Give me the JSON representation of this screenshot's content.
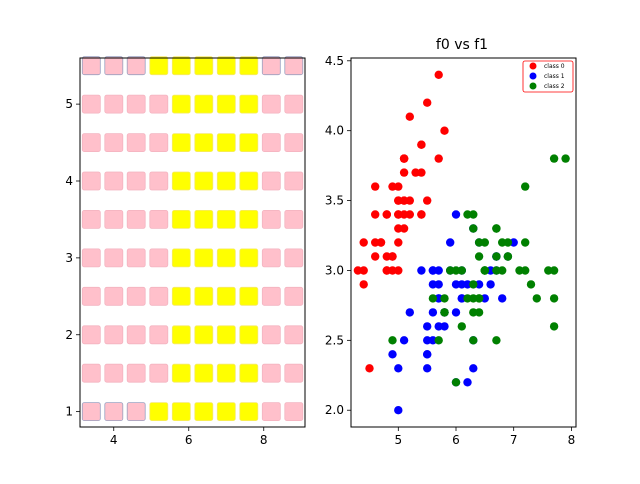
{
  "chart_data": [
    {
      "type": "heatmap",
      "title": "",
      "xlabel": "",
      "ylabel": "",
      "xlim": [
        3.1,
        9.1
      ],
      "ylim": [
        0.8,
        5.6
      ],
      "x_ticks": [
        "4",
        "6",
        "8"
      ],
      "x_tick_values": [
        4,
        6,
        8
      ],
      "y_ticks": [
        "1",
        "2",
        "3",
        "4",
        "5"
      ],
      "y_tick_values": [
        1,
        2,
        3,
        4,
        5
      ],
      "grid": false,
      "x": [
        3.4,
        4.0,
        4.6,
        5.2,
        5.8,
        6.4,
        7.0,
        7.6,
        8.2,
        8.8
      ],
      "y": [
        1.0,
        1.5,
        2.0,
        2.5,
        3.0,
        3.5,
        4.0,
        4.5,
        5.0,
        5.5
      ],
      "cell_classes": [
        [
          0,
          0,
          0,
          1,
          1,
          1,
          1,
          1,
          0,
          0
        ],
        [
          0,
          0,
          0,
          0,
          1,
          1,
          1,
          1,
          0,
          0
        ],
        [
          0,
          0,
          0,
          0,
          1,
          1,
          1,
          1,
          0,
          0
        ],
        [
          0,
          0,
          0,
          0,
          1,
          1,
          1,
          1,
          0,
          0
        ],
        [
          0,
          0,
          0,
          0,
          1,
          1,
          1,
          1,
          0,
          0
        ],
        [
          0,
          0,
          0,
          0,
          1,
          1,
          1,
          1,
          0,
          0
        ],
        [
          0,
          0,
          0,
          0,
          1,
          1,
          1,
          1,
          0,
          0
        ],
        [
          0,
          0,
          0,
          0,
          1,
          1,
          1,
          1,
          0,
          0
        ],
        [
          0,
          0,
          0,
          0,
          1,
          1,
          1,
          1,
          0,
          0
        ],
        [
          0,
          0,
          0,
          1,
          1,
          1,
          1,
          1,
          0,
          0
        ]
      ],
      "class_colors": [
        "#ffc0cb",
        "#ffff00"
      ],
      "highlight_cells": [
        [
          0,
          0
        ],
        [
          0,
          1
        ],
        [
          0,
          2
        ],
        [
          9,
          0
        ],
        [
          9,
          1
        ],
        [
          9,
          2
        ],
        [
          9,
          8
        ],
        [
          9,
          9
        ]
      ],
      "highlight_color": "#9aa0c0"
    },
    {
      "type": "scatter",
      "title": "f0 vs f1",
      "xlabel": "",
      "ylabel": "",
      "xlim": [
        4.18,
        8.08
      ],
      "ylim": [
        1.88,
        4.52
      ],
      "x_ticks": [
        "5",
        "6",
        "7",
        "8"
      ],
      "x_tick_values": [
        5,
        6,
        7,
        8
      ],
      "y_ticks": [
        "2.0",
        "2.5",
        "3.0",
        "3.5",
        "4.0",
        "4.5"
      ],
      "y_tick_values": [
        2.0,
        2.5,
        3.0,
        3.5,
        4.0,
        4.5
      ],
      "grid": false,
      "legend_position": "top-right",
      "series": [
        {
          "name": "class 0",
          "color": "#ff0000",
          "x": [
            5.1,
            4.9,
            4.7,
            4.6,
            5.0,
            5.4,
            4.6,
            5.0,
            4.4,
            4.9,
            5.4,
            4.8,
            4.8,
            4.3,
            5.8,
            5.7,
            5.4,
            5.1,
            5.7,
            5.1,
            5.4,
            5.1,
            4.6,
            5.1,
            4.8,
            5.0,
            5.0,
            5.2,
            5.2,
            4.7,
            4.8,
            5.4,
            5.2,
            5.5,
            4.9,
            5.0,
            5.5,
            4.9,
            4.4,
            5.1,
            5.0,
            4.5,
            4.4,
            5.0,
            5.1,
            4.8,
            5.1,
            4.6,
            5.3,
            5.0
          ],
          "y": [
            3.5,
            3.0,
            3.2,
            3.1,
            3.6,
            3.9,
            3.4,
            3.4,
            2.9,
            3.1,
            3.7,
            3.4,
            3.0,
            3.0,
            4.0,
            4.4,
            3.9,
            3.5,
            3.8,
            3.8,
            3.4,
            3.7,
            3.6,
            3.3,
            3.4,
            3.0,
            3.4,
            3.5,
            3.4,
            3.2,
            3.1,
            3.4,
            4.1,
            4.2,
            3.1,
            3.2,
            3.5,
            3.6,
            3.0,
            3.4,
            3.5,
            2.3,
            3.2,
            3.5,
            3.8,
            3.0,
            3.8,
            3.2,
            3.7,
            3.3
          ]
        },
        {
          "name": "class 1",
          "color": "#0000ff",
          "x": [
            7.0,
            6.4,
            6.9,
            5.5,
            6.5,
            5.7,
            6.3,
            4.9,
            6.6,
            5.2,
            5.0,
            5.9,
            6.0,
            6.1,
            5.6,
            6.7,
            5.6,
            5.8,
            6.2,
            5.6,
            5.9,
            6.1,
            6.3,
            6.1,
            6.4,
            6.6,
            6.8,
            6.7,
            6.0,
            5.7,
            5.5,
            5.5,
            5.8,
            6.0,
            5.4,
            6.0,
            6.7,
            6.3,
            5.6,
            5.5,
            5.5,
            6.1,
            5.8,
            5.0,
            5.6,
            5.7,
            5.7,
            6.2,
            5.1,
            5.7
          ],
          "y": [
            3.2,
            3.2,
            3.1,
            2.3,
            2.8,
            2.8,
            3.3,
            2.4,
            2.9,
            2.7,
            2.0,
            3.0,
            2.2,
            2.9,
            2.9,
            3.1,
            3.0,
            2.7,
            2.2,
            2.5,
            3.2,
            2.8,
            2.5,
            2.8,
            2.9,
            3.0,
            2.8,
            3.0,
            2.9,
            2.6,
            2.4,
            2.4,
            2.7,
            2.7,
            3.0,
            3.4,
            3.1,
            2.3,
            3.0,
            2.5,
            2.6,
            3.0,
            2.6,
            2.3,
            2.7,
            3.0,
            2.9,
            2.9,
            2.5,
            2.8
          ]
        },
        {
          "name": "class 2",
          "color": "#008000",
          "x": [
            6.3,
            5.8,
            7.1,
            6.3,
            6.5,
            7.6,
            4.9,
            7.3,
            6.7,
            7.2,
            6.5,
            6.4,
            6.8,
            5.7,
            5.8,
            6.4,
            6.5,
            7.7,
            7.7,
            6.0,
            6.9,
            5.6,
            7.7,
            6.3,
            6.7,
            7.2,
            6.2,
            6.1,
            6.4,
            7.2,
            7.4,
            7.9,
            6.4,
            6.3,
            6.1,
            7.7,
            6.3,
            6.4,
            6.0,
            6.9,
            6.7,
            6.9,
            5.8,
            6.8,
            6.7,
            6.7,
            6.3,
            6.5,
            6.2,
            5.9
          ],
          "y": [
            3.3,
            2.7,
            3.0,
            2.9,
            3.0,
            3.0,
            2.5,
            2.9,
            2.5,
            3.6,
            3.2,
            2.7,
            3.0,
            2.5,
            2.8,
            3.2,
            3.0,
            3.8,
            2.6,
            2.2,
            3.2,
            2.8,
            2.8,
            2.7,
            3.3,
            3.2,
            2.8,
            3.0,
            2.8,
            3.0,
            2.8,
            3.8,
            2.8,
            2.8,
            2.6,
            3.0,
            3.4,
            3.1,
            3.0,
            3.1,
            3.1,
            3.1,
            2.7,
            3.2,
            3.3,
            3.0,
            2.5,
            3.0,
            3.4,
            3.0
          ]
        }
      ]
    }
  ]
}
